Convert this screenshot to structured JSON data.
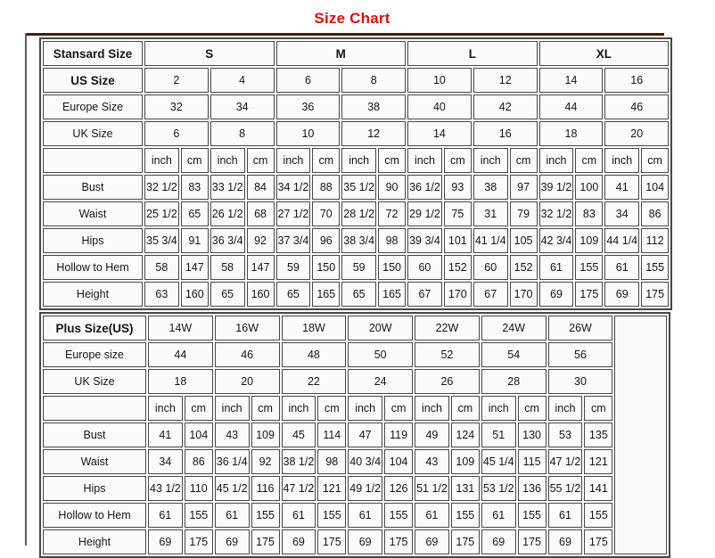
{
  "title": "Size Chart",
  "colors": {
    "title_red": "#e00d0d",
    "table_border": "#474747",
    "top_rule_brown": "#38230e"
  },
  "standard_table": {
    "corner_label": "Stansard Size",
    "groups": [
      "S",
      "M",
      "L",
      "XL"
    ],
    "info_rows": [
      {
        "label": "US Size",
        "bold": true,
        "values": [
          "2",
          "4",
          "6",
          "8",
          "10",
          "12",
          "14",
          "16"
        ]
      },
      {
        "label": "Europe Size",
        "bold": false,
        "values": [
          "32",
          "34",
          "36",
          "38",
          "40",
          "42",
          "44",
          "46"
        ]
      },
      {
        "label": "UK Size",
        "bold": false,
        "values": [
          "6",
          "8",
          "10",
          "12",
          "14",
          "16",
          "18",
          "20"
        ]
      }
    ],
    "unit_pair": [
      "inch",
      "cm"
    ],
    "measure_rows": [
      {
        "label": "Bust",
        "values": [
          "32 1/2",
          "83",
          "33 1/2",
          "84",
          "34 1/2",
          "88",
          "35 1/2",
          "90",
          "36 1/2",
          "93",
          "38",
          "97",
          "39 1/2",
          "100",
          "41",
          "104"
        ]
      },
      {
        "label": "Waist",
        "values": [
          "25 1/2",
          "65",
          "26 1/2",
          "68",
          "27 1/2",
          "70",
          "28 1/2",
          "72",
          "29 1/2",
          "75",
          "31",
          "79",
          "32 1/2",
          "83",
          "34",
          "86"
        ]
      },
      {
        "label": "Hips",
        "values": [
          "35 3/4",
          "91",
          "36 3/4",
          "92",
          "37 3/4",
          "96",
          "38 3/4",
          "98",
          "39 3/4",
          "101",
          "41 1/4",
          "105",
          "42 3/4",
          "109",
          "44 1/4",
          "112"
        ]
      },
      {
        "label": "Hollow to Hem",
        "values": [
          "58",
          "147",
          "58",
          "147",
          "59",
          "150",
          "59",
          "150",
          "60",
          "152",
          "60",
          "152",
          "61",
          "155",
          "61",
          "155"
        ]
      },
      {
        "label": "Height",
        "values": [
          "63",
          "160",
          "65",
          "160",
          "65",
          "165",
          "65",
          "165",
          "67",
          "170",
          "67",
          "170",
          "69",
          "175",
          "69",
          "175"
        ]
      }
    ]
  },
  "plus_table": {
    "corner_label": "Plus Size(US)",
    "sizes": [
      "14W",
      "16W",
      "18W",
      "20W",
      "22W",
      "24W",
      "26W"
    ],
    "info_rows": [
      {
        "label": "Europe size",
        "bold": false,
        "values": [
          "44",
          "46",
          "48",
          "50",
          "52",
          "54",
          "56"
        ]
      },
      {
        "label": "UK Size",
        "bold": false,
        "values": [
          "18",
          "20",
          "22",
          "24",
          "26",
          "28",
          "30"
        ]
      }
    ],
    "unit_pair": [
      "inch",
      "cm"
    ],
    "measure_rows": [
      {
        "label": "Bust",
        "values": [
          "41",
          "104",
          "43",
          "109",
          "45",
          "114",
          "47",
          "119",
          "49",
          "124",
          "51",
          "130",
          "53",
          "135"
        ]
      },
      {
        "label": "Waist",
        "values": [
          "34",
          "86",
          "36 1/4",
          "92",
          "38 1/2",
          "98",
          "40 3/4",
          "104",
          "43",
          "109",
          "45 1/4",
          "115",
          "47 1/2",
          "121"
        ]
      },
      {
        "label": "Hips",
        "values": [
          "43 1/2",
          "110",
          "45 1/2",
          "116",
          "47 1/2",
          "121",
          "49 1/2",
          "126",
          "51 1/2",
          "131",
          "53 1/2",
          "136",
          "55 1/2",
          "141"
        ]
      },
      {
        "label": "Hollow to Hem",
        "values": [
          "61",
          "155",
          "61",
          "155",
          "61",
          "155",
          "61",
          "155",
          "61",
          "155",
          "61",
          "155",
          "61",
          "155"
        ]
      },
      {
        "label": "Height",
        "values": [
          "69",
          "175",
          "69",
          "175",
          "69",
          "175",
          "69",
          "175",
          "69",
          "175",
          "69",
          "175",
          "69",
          "175"
        ]
      }
    ]
  }
}
